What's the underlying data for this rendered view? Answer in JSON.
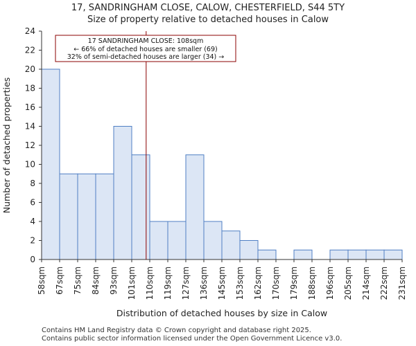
{
  "chart_data": {
    "type": "bar",
    "title": "17, SANDRINGHAM CLOSE, CALOW, CHESTERFIELD, S44 5TY",
    "subtitle": "Size of property relative to detached houses in Calow",
    "xlabel": "Distribution of detached houses by size in Calow",
    "ylabel": "Number of detached properties",
    "ylim": [
      0,
      24
    ],
    "yticks": [
      0,
      2,
      4,
      6,
      8,
      10,
      12,
      14,
      16,
      18,
      20,
      22,
      24
    ],
    "bin_edges": [
      "58sqm",
      "67sqm",
      "75sqm",
      "84sqm",
      "93sqm",
      "101sqm",
      "110sqm",
      "119sqm",
      "127sqm",
      "136sqm",
      "145sqm",
      "153sqm",
      "162sqm",
      "170sqm",
      "179sqm",
      "188sqm",
      "196sqm",
      "205sqm",
      "214sqm",
      "222sqm",
      "231sqm"
    ],
    "values": [
      20,
      9,
      9,
      9,
      14,
      11,
      4,
      4,
      11,
      4,
      3,
      2,
      1,
      0,
      1,
      0,
      1,
      1,
      1,
      1
    ],
    "marker_value": 108,
    "marker_bin_position": 5.8,
    "bar_color": "#dce6f5",
    "bar_edge_color": "#4f7fc4",
    "marker_color": "#8b0000",
    "annotation": {
      "line1": "17 SANDRINGHAM CLOSE: 108sqm",
      "line2": "← 66% of detached houses are smaller (69)",
      "line3": "32% of semi-detached houses are larger (34) →"
    }
  },
  "footer": {
    "line1": "Contains HM Land Registry data © Crown copyright and database right 2025.",
    "line2": "Contains public sector information licensed under the Open Government Licence v3.0."
  }
}
